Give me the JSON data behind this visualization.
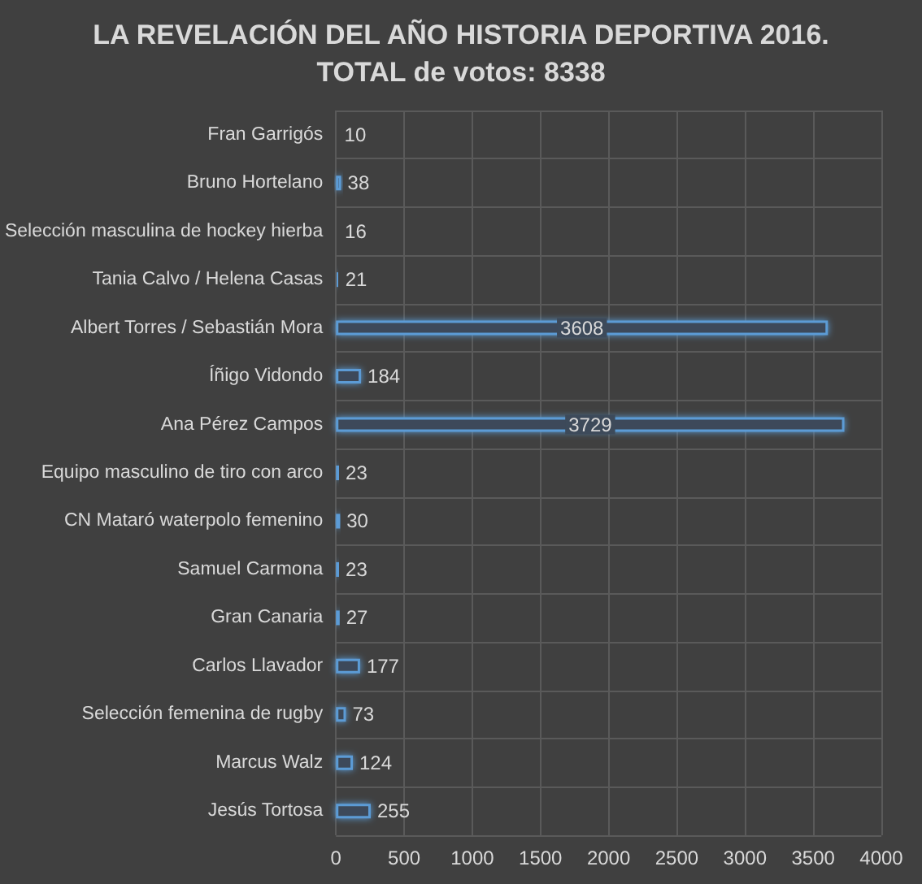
{
  "chart_data": {
    "type": "bar",
    "orientation": "horizontal",
    "title": "LA REVELACIÓN DEL AÑO HISTORIA DEPORTIVA 2016.",
    "subtitle": "TOTAL de votos: 8338",
    "categories": [
      "Fran Garrigós",
      "Bruno Hortelano",
      "Selección masculina de hockey hierba",
      "Tania Calvo / Helena Casas",
      "Albert Torres / Sebastián Mora",
      "Íñigo Vidondo",
      "Ana Pérez Campos",
      "Equipo masculino de tiro con arco",
      "CN Mataró waterpolo femenino",
      "Samuel Carmona",
      "Gran Canaria",
      "Carlos Llavador",
      "Selección femenina de rugby",
      "Marcus Walz",
      "Jesús Tortosa"
    ],
    "values": [
      10,
      38,
      16,
      21,
      3608,
      184,
      3729,
      23,
      30,
      23,
      27,
      177,
      73,
      124,
      255
    ],
    "color": "#5b9bd5",
    "xlim": [
      0,
      4000
    ],
    "xticks": [
      0,
      500,
      1000,
      1500,
      2000,
      2500,
      3000,
      3500,
      4000
    ],
    "grid": true,
    "data_labels": true
  }
}
